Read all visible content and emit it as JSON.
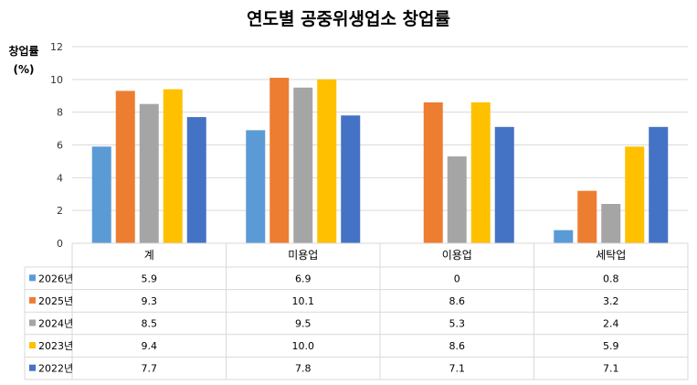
{
  "chart_data": {
    "type": "bar",
    "title": "연도별 공중위생업소 창업률",
    "ylabel_line1": "창업률",
    "ylabel_line2": "(%)",
    "ylim": [
      0,
      12
    ],
    "yticks": [
      "0",
      "2",
      "4",
      "6",
      "8",
      "10",
      "12"
    ],
    "grid": true,
    "legend_placement": "data-table-left",
    "categories": [
      "계",
      "미용업",
      "이용업",
      "세탁업"
    ],
    "series": [
      {
        "name": "2026년",
        "color": "#5B9BD5",
        "values": [
          5.9,
          6.9,
          0,
          0.8
        ],
        "labels": [
          "5.9",
          "6.9",
          "0",
          "0.8"
        ]
      },
      {
        "name": "2025년",
        "color": "#ED7D31",
        "values": [
          9.3,
          10.1,
          8.6,
          3.2
        ],
        "labels": [
          "9.3",
          "10.1",
          "8.6",
          "3.2"
        ]
      },
      {
        "name": "2024년",
        "color": "#A5A5A5",
        "values": [
          8.5,
          9.5,
          5.3,
          2.4
        ],
        "labels": [
          "8.5",
          "9.5",
          "5.3",
          "2.4"
        ]
      },
      {
        "name": "2023년",
        "color": "#FFC000",
        "values": [
          9.4,
          10.0,
          8.6,
          5.9
        ],
        "labels": [
          "9.4",
          "10.0",
          "8.6",
          "5.9"
        ]
      },
      {
        "name": "2022년",
        "color": "#4472C4",
        "values": [
          7.7,
          7.8,
          7.1,
          7.1
        ],
        "labels": [
          "7.7",
          "7.8",
          "7.1",
          "7.1"
        ]
      }
    ]
  }
}
